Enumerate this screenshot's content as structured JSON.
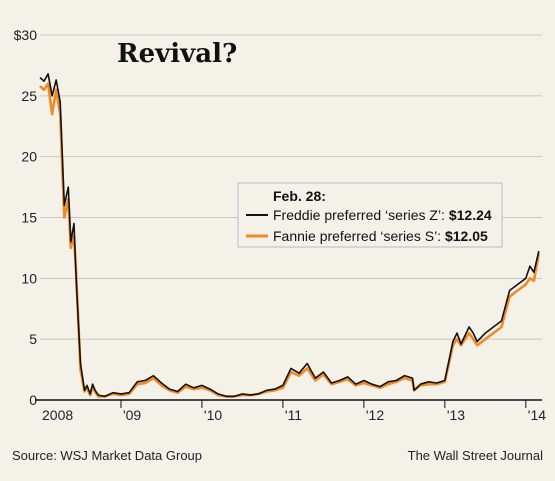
{
  "chart_data": {
    "type": "line",
    "title": "Revival?",
    "xlabel": "",
    "ylabel": "",
    "ylim": [
      0,
      30
    ],
    "y_ticks": [
      "$30",
      "25",
      "20",
      "15",
      "10",
      "5",
      "0"
    ],
    "x_ticks": [
      "2008",
      "'09",
      "'10",
      "'11",
      "'12",
      "'13",
      "'14"
    ],
    "grid": true,
    "legend": {
      "heading": "Feb. 28:",
      "placement": "right",
      "entries": [
        {
          "label": "Freddie preferred ‘series Z’: ",
          "value": "$12.24",
          "color": "#111111"
        },
        {
          "label": "Fannie preferred ‘series S’: ",
          "value": "$12.05",
          "color": "#f08a24"
        }
      ]
    },
    "series": [
      {
        "name": "Freddie preferred ‘series Z’",
        "color": "#111111",
        "x": [
          2008.0,
          2008.05,
          2008.1,
          2008.15,
          2008.2,
          2008.25,
          2008.3,
          2008.35,
          2008.38,
          2008.42,
          2008.45,
          2008.5,
          2008.55,
          2008.58,
          2008.62,
          2008.65,
          2008.68,
          2008.72,
          2008.8,
          2008.9,
          2009.0,
          2009.1,
          2009.2,
          2009.3,
          2009.4,
          2009.5,
          2009.6,
          2009.7,
          2009.8,
          2009.9,
          2010.0,
          2010.1,
          2010.2,
          2010.3,
          2010.4,
          2010.5,
          2010.6,
          2010.7,
          2010.8,
          2010.9,
          2011.0,
          2011.1,
          2011.2,
          2011.3,
          2011.4,
          2011.5,
          2011.6,
          2011.7,
          2011.8,
          2011.9,
          2012.0,
          2012.1,
          2012.2,
          2012.3,
          2012.4,
          2012.5,
          2012.6,
          2012.62,
          2012.7,
          2012.8,
          2012.9,
          2013.0,
          2013.1,
          2013.15,
          2013.2,
          2013.3,
          2013.35,
          2013.4,
          2013.5,
          2013.6,
          2013.7,
          2013.8,
          2013.9,
          2014.0,
          2014.05,
          2014.1,
          2014.16
        ],
        "values": [
          26.5,
          26.2,
          26.8,
          25.0,
          26.3,
          24.5,
          16.0,
          17.5,
          13.0,
          14.5,
          9.5,
          3.0,
          0.8,
          1.2,
          0.5,
          1.3,
          0.8,
          0.4,
          0.3,
          0.6,
          0.5,
          0.6,
          1.5,
          1.6,
          2.0,
          1.4,
          0.9,
          0.7,
          1.3,
          1.0,
          1.2,
          0.9,
          0.5,
          0.3,
          0.3,
          0.5,
          0.4,
          0.5,
          0.8,
          0.9,
          1.2,
          2.6,
          2.2,
          3.0,
          1.8,
          2.3,
          1.4,
          1.6,
          1.9,
          1.3,
          1.6,
          1.3,
          1.1,
          1.5,
          1.6,
          2.0,
          1.8,
          0.8,
          1.3,
          1.5,
          1.4,
          1.6,
          4.8,
          5.5,
          4.6,
          6.0,
          5.5,
          4.8,
          5.5,
          6.0,
          6.5,
          9.0,
          9.5,
          10.0,
          11.0,
          10.5,
          12.24
        ]
      },
      {
        "name": "Fannie preferred ‘series S’",
        "color": "#f08a24",
        "x": [
          2008.0,
          2008.05,
          2008.1,
          2008.15,
          2008.2,
          2008.25,
          2008.3,
          2008.35,
          2008.38,
          2008.42,
          2008.45,
          2008.5,
          2008.55,
          2008.58,
          2008.62,
          2008.65,
          2008.68,
          2008.72,
          2008.8,
          2008.9,
          2009.0,
          2009.1,
          2009.2,
          2009.3,
          2009.4,
          2009.5,
          2009.6,
          2009.7,
          2009.8,
          2009.9,
          2010.0,
          2010.1,
          2010.2,
          2010.3,
          2010.4,
          2010.5,
          2010.6,
          2010.7,
          2010.8,
          2010.9,
          2011.0,
          2011.1,
          2011.2,
          2011.3,
          2011.4,
          2011.5,
          2011.6,
          2011.7,
          2011.8,
          2011.9,
          2012.0,
          2012.1,
          2012.2,
          2012.3,
          2012.4,
          2012.5,
          2012.6,
          2012.62,
          2012.7,
          2012.8,
          2012.9,
          2013.0,
          2013.1,
          2013.15,
          2013.2,
          2013.3,
          2013.35,
          2013.4,
          2013.5,
          2013.6,
          2013.7,
          2013.8,
          2013.9,
          2014.0,
          2014.05,
          2014.1,
          2014.16
        ],
        "values": [
          25.8,
          25.5,
          26.0,
          23.5,
          25.5,
          23.5,
          15.0,
          16.5,
          12.5,
          13.5,
          10.0,
          2.5,
          0.7,
          1.0,
          0.4,
          1.1,
          0.7,
          0.3,
          0.3,
          0.5,
          0.4,
          0.5,
          1.3,
          1.4,
          1.8,
          1.2,
          0.8,
          0.6,
          1.1,
          0.9,
          1.0,
          0.8,
          0.4,
          0.3,
          0.3,
          0.4,
          0.4,
          0.5,
          0.7,
          0.8,
          1.0,
          2.3,
          2.0,
          2.6,
          1.6,
          2.1,
          1.3,
          1.5,
          1.7,
          1.2,
          1.4,
          1.2,
          1.0,
          1.3,
          1.5,
          1.8,
          1.6,
          0.8,
          1.2,
          1.3,
          1.3,
          1.5,
          4.5,
          5.0,
          4.5,
          5.5,
          5.0,
          4.5,
          5.0,
          5.5,
          6.0,
          8.5,
          9.0,
          9.5,
          10.0,
          9.8,
          12.05
        ]
      }
    ]
  },
  "footer": {
    "source": "Source: WSJ Market Data Group",
    "credit": "The Wall Street Journal"
  }
}
